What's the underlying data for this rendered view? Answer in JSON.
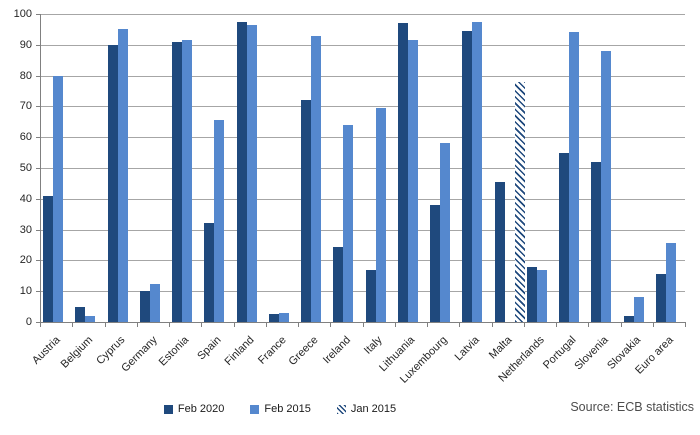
{
  "chart_data": {
    "type": "bar",
    "title": "",
    "xlabel": "",
    "ylabel": "",
    "ylim": [
      0,
      100
    ],
    "yticks": [
      0,
      10,
      20,
      30,
      40,
      50,
      60,
      70,
      80,
      90,
      100
    ],
    "grid": true,
    "legend_position": "bottom-center",
    "categories": [
      "Austria",
      "Belgium",
      "Cyprus",
      "Germany",
      "Estonia",
      "Spain",
      "Finland",
      "France",
      "Greece",
      "Ireland",
      "Italy",
      "Lithuania",
      "Luxembourg",
      "Latvia",
      "Malta",
      "Netherlands",
      "Portugal",
      "Slovenia",
      "Slovakia",
      "Euro area"
    ],
    "series": [
      {
        "name": "Feb 2020",
        "color": "#1F497D",
        "style": "solid",
        "values": [
          41,
          5,
          90,
          10,
          91,
          32,
          97.5,
          2.5,
          72,
          24.5,
          17,
          97,
          38,
          94.5,
          45.5,
          18,
          55,
          52,
          2,
          15.5
        ]
      },
      {
        "name": "Feb 2015",
        "color": "#5588CE",
        "style": "solid",
        "values": [
          80,
          2,
          95,
          12.5,
          91.5,
          65.5,
          96.5,
          3,
          93,
          64,
          69.5,
          91.5,
          58,
          97.5,
          null,
          17,
          94,
          88,
          8,
          25.5
        ]
      },
      {
        "name": "Jan 2015",
        "color": "#1F497D",
        "style": "hatched",
        "values": [
          null,
          null,
          null,
          null,
          null,
          null,
          null,
          null,
          null,
          null,
          null,
          null,
          null,
          null,
          78,
          null,
          null,
          null,
          null,
          null
        ]
      }
    ]
  },
  "source_label": "Source: ECB statistics",
  "colors": {
    "feb_2020": "#1F497D",
    "feb_2015": "#5588CE",
    "gridline": "#A6A6A6",
    "axis": "#808080",
    "axis_text": "#262626",
    "source_text": "#4D4D4D",
    "background": "#FFFFFF"
  }
}
